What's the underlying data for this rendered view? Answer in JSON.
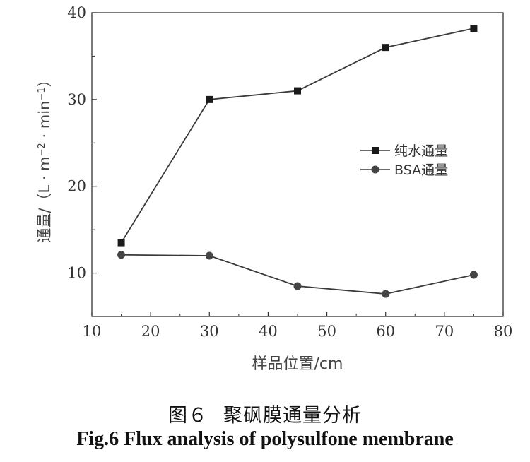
{
  "chart_data": {
    "type": "line",
    "x": [
      15,
      30,
      45,
      60,
      75
    ],
    "xlim": [
      10,
      80
    ],
    "ylim": [
      5,
      40
    ],
    "x_ticks": [
      10,
      20,
      30,
      40,
      50,
      60,
      70,
      80
    ],
    "y_ticks": [
      10,
      20,
      30,
      40
    ],
    "xlabel": "样品位置/cm",
    "ylabel": "通量/（L · m",
    "ylabel_sup1": "−2",
    "ylabel_mid": " · min",
    "ylabel_sup2": "−1",
    "ylabel_end": "）",
    "grid": false,
    "legend_position": "right",
    "series": [
      {
        "name": "纯水通量",
        "marker": "square",
        "values": [
          13.5,
          30.0,
          31.0,
          36.0,
          38.2
        ]
      },
      {
        "name": "BSA通量",
        "marker": "circle",
        "values": [
          12.1,
          12.0,
          8.5,
          7.6,
          9.8
        ]
      }
    ],
    "colors": {
      "line": "#3a3a3a",
      "marker": "#1a1a1a",
      "axis": "#333333"
    }
  },
  "caption": {
    "cn_label": "图６",
    "cn_title": "聚砜膜通量分析",
    "en": "Fig.6 Flux analysis of polysulfone membrane"
  }
}
